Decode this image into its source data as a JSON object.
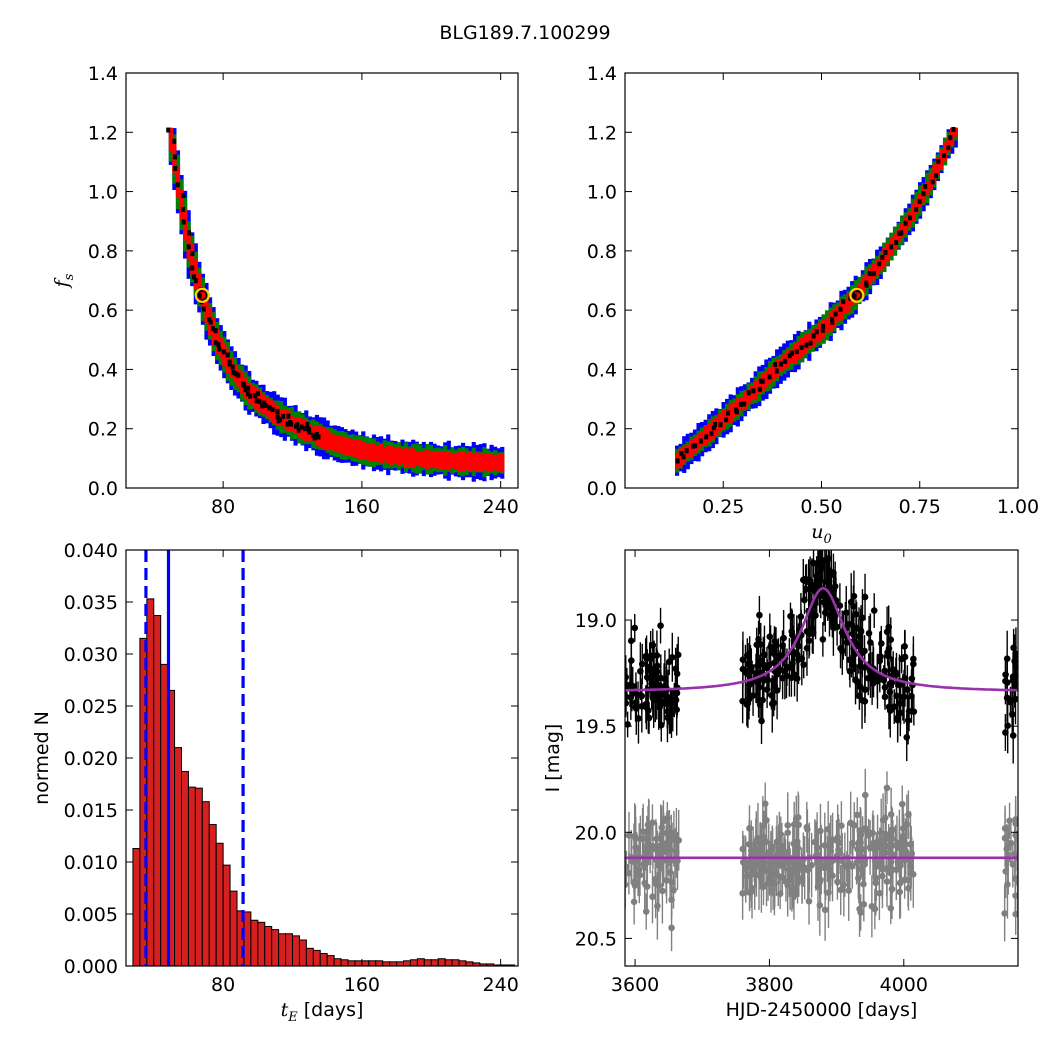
{
  "figure": {
    "title": "BLG189.7.100299"
  },
  "chart_data": [
    {
      "type": "heatmap",
      "panel": "top-left",
      "xlabel": "",
      "ylabel": "f_s",
      "xlim": [
        24,
        250
      ],
      "ylim": [
        0.0,
        1.4
      ],
      "xticks": [
        "80",
        "160",
        "240"
      ],
      "yticks": [
        "0.0",
        "0.2",
        "0.4",
        "0.6",
        "0.8",
        "1.0",
        "1.2",
        "1.4"
      ],
      "levels": [
        {
          "name": "outer",
          "color": "#0000ff"
        },
        {
          "name": "middle",
          "color": "#008000"
        },
        {
          "name": "inner",
          "color": "#ff0000"
        },
        {
          "name": "best-chain",
          "color": "#000000"
        }
      ],
      "ridge": [
        [
          49,
          1.21
        ],
        [
          52,
          1.1
        ],
        [
          56,
          0.95
        ],
        [
          60,
          0.82
        ],
        [
          65,
          0.7
        ],
        [
          70,
          0.6
        ],
        [
          76,
          0.5
        ],
        [
          85,
          0.4
        ],
        [
          95,
          0.32
        ],
        [
          110,
          0.25
        ],
        [
          125,
          0.2
        ],
        [
          145,
          0.15
        ],
        [
          165,
          0.12
        ],
        [
          190,
          0.1
        ],
        [
          215,
          0.09
        ],
        [
          240,
          0.085
        ]
      ],
      "best_fit": {
        "x": 68,
        "y": 0.65
      }
    },
    {
      "type": "heatmap",
      "panel": "top-right",
      "xlabel": "u_0",
      "ylabel": "",
      "xlim": [
        0.0,
        1.0
      ],
      "ylim": [
        0.0,
        1.4
      ],
      "xticks": [
        "0.25",
        "0.50",
        "0.75",
        "1.00"
      ],
      "yticks": [
        "0.0",
        "0.2",
        "0.4",
        "0.6",
        "0.8",
        "1.0",
        "1.2",
        "1.4"
      ],
      "ridge": [
        [
          0.13,
          0.09
        ],
        [
          0.2,
          0.17
        ],
        [
          0.3,
          0.29
        ],
        [
          0.4,
          0.42
        ],
        [
          0.5,
          0.53
        ],
        [
          0.58,
          0.64
        ],
        [
          0.65,
          0.76
        ],
        [
          0.72,
          0.9
        ],
        [
          0.78,
          1.04
        ],
        [
          0.84,
          1.21
        ]
      ],
      "best_fit": {
        "x": 0.59,
        "y": 0.65
      }
    },
    {
      "type": "bar",
      "panel": "bottom-left",
      "xlabel": "t_E [days]",
      "ylabel": "normed N",
      "xlim": [
        24,
        250
      ],
      "ylim": [
        0.0,
        0.04
      ],
      "xticks": [
        "80",
        "160",
        "240"
      ],
      "yticks": [
        "0.000",
        "0.005",
        "0.010",
        "0.015",
        "0.020",
        "0.025",
        "0.030",
        "0.035",
        "0.040"
      ],
      "bin_start": 24,
      "bin_width": 4,
      "values": [
        0.0,
        0.0113,
        0.0315,
        0.0353,
        0.0337,
        0.029,
        0.0265,
        0.021,
        0.0187,
        0.0172,
        0.0171,
        0.0158,
        0.0136,
        0.0118,
        0.0097,
        0.0072,
        0.0053,
        0.0052,
        0.0044,
        0.0042,
        0.0038,
        0.0035,
        0.0031,
        0.0031,
        0.0029,
        0.0025,
        0.0017,
        0.0015,
        0.0012,
        0.001,
        0.0007,
        0.0006,
        0.0005,
        0.0005,
        0.0005,
        0.0005,
        0.0005,
        0.0004,
        0.0004,
        0.0004,
        0.0005,
        0.0006,
        0.0007,
        0.0006,
        0.0006,
        0.0007,
        0.0006,
        0.0006,
        0.0005,
        0.0004,
        0.0003,
        0.0002,
        0.0002,
        0.0001,
        0.0001,
        0.0001
      ],
      "bar_color": "#d62020",
      "vlines": [
        {
          "x": 35.5,
          "style": "dashed",
          "color": "#0000ff"
        },
        {
          "x": 48.5,
          "style": "solid",
          "color": "#0000ff"
        },
        {
          "x": 91.5,
          "style": "dashed",
          "color": "#0000ff"
        }
      ]
    },
    {
      "type": "scatter",
      "panel": "bottom-right",
      "xlabel": "HJD-2450000 [days]",
      "ylabel": "I [mag]",
      "xlim": [
        3585,
        4170
      ],
      "ylim": [
        20.63,
        18.67
      ],
      "y_inverted": true,
      "xticks": [
        "3600",
        "3800",
        "4000"
      ],
      "yticks": [
        "19.0",
        "19.5",
        "20.0",
        "20.5"
      ],
      "series": [
        {
          "color": "#000000",
          "baseline": 19.34,
          "peak_mag": 18.85,
          "t0": 3880,
          "tE": 40,
          "scatter": 0.1,
          "err": 0.1,
          "seasons": [
            [
              3585,
              3665
            ],
            [
              3760,
              4015
            ],
            [
              4150,
              4170
            ]
          ]
        },
        {
          "color": "#808080",
          "baseline": 20.12,
          "scatter": 0.1,
          "err": 0.12,
          "seasons": [
            [
              3585,
              3665
            ],
            [
              3760,
              4015
            ],
            [
              4150,
              4170
            ]
          ]
        }
      ],
      "model_color": "#9932aa"
    }
  ]
}
